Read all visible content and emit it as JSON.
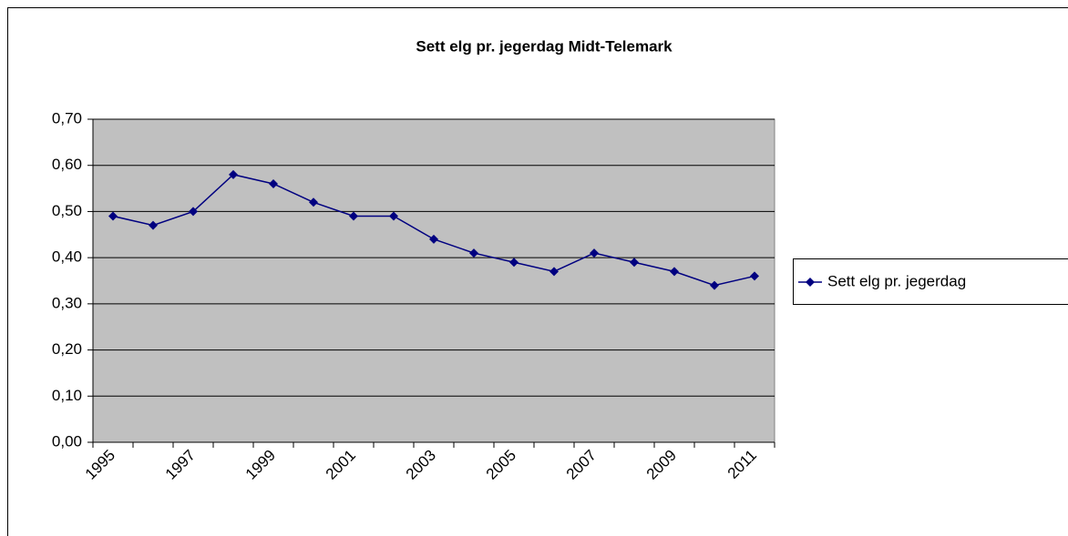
{
  "chart_data": {
    "type": "line",
    "title": "Sett elg pr. jegerdag Midt-Telemark",
    "categories": [
      "1995",
      null,
      "1997",
      null,
      "1999",
      null,
      "2001",
      null,
      "2003",
      null,
      "2005",
      null,
      "2007",
      null,
      "2009",
      null,
      "2011"
    ],
    "series": [
      {
        "name": "Sett elg pr. jegerdag",
        "color": "#000080",
        "values": [
          0.49,
          0.47,
          0.5,
          0.58,
          0.56,
          0.52,
          0.49,
          0.49,
          0.44,
          0.41,
          0.39,
          0.37,
          0.41,
          0.39,
          0.37,
          0.34,
          0.36
        ]
      }
    ],
    "ylim": [
      0,
      0.7
    ],
    "yticks": [
      {
        "value": 0,
        "label": "0,00"
      },
      {
        "value": 0.1,
        "label": "0,10"
      },
      {
        "value": 0.2,
        "label": "0,20"
      },
      {
        "value": 0.3,
        "label": "0,30"
      },
      {
        "value": 0.4,
        "label": "0,40"
      },
      {
        "value": 0.5,
        "label": "0,50"
      },
      {
        "value": 0.6,
        "label": "0,60"
      },
      {
        "value": 0.7,
        "label": "0,70"
      }
    ],
    "grid": true,
    "legend": "right",
    "plot_background": "#c0c0c0"
  }
}
